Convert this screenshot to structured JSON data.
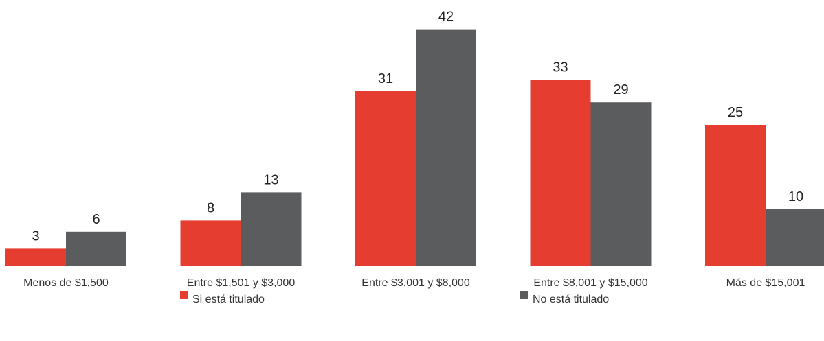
{
  "chart_data": {
    "type": "bar",
    "categories": [
      "Menos de $1,500",
      "Entre $1,501 y $3,000",
      "Entre $3,001 y $8,000",
      "Entre $8,001 y $15,000",
      "Más de $15,001"
    ],
    "series": [
      {
        "name": "Si está titulado",
        "color": "#e53d30",
        "values": [
          3,
          8,
          31,
          33,
          25
        ]
      },
      {
        "name": "No está titulado",
        "color": "#5b5c5e",
        "values": [
          6,
          13,
          42,
          29,
          10
        ]
      }
    ]
  }
}
